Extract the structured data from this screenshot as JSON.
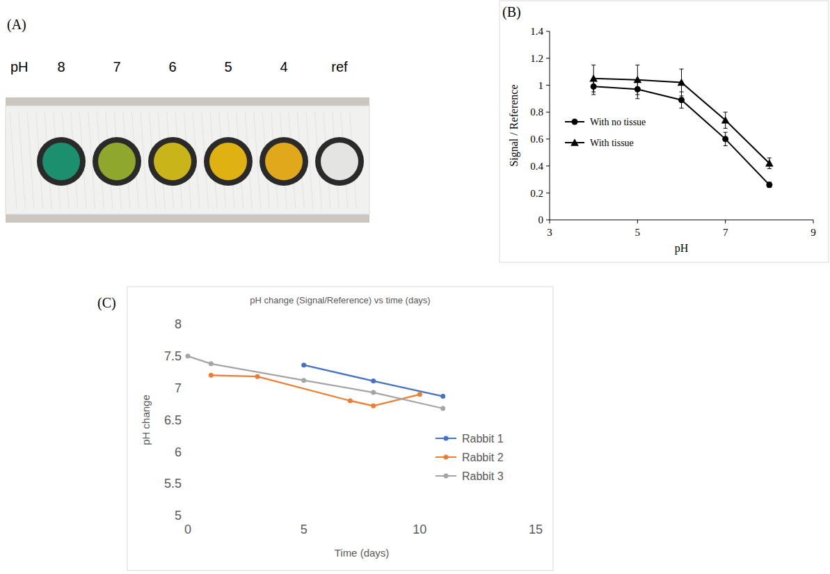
{
  "chart_data": [
    {
      "type": "swatch",
      "panel_label": "(A)",
      "x_label": "pH",
      "categories": [
        "8",
        "7",
        "6",
        "5",
        "4",
        "ref"
      ],
      "colors": [
        "#1b8f6e",
        "#8ea72c",
        "#c9b41a",
        "#dfb112",
        "#e0a81a",
        "#e4e4e2"
      ]
    },
    {
      "type": "line",
      "panel_label": "(B)",
      "x_label": "pH",
      "y_label": "Signal / Reference",
      "x": [
        4,
        5,
        6,
        7,
        8
      ],
      "xlim": [
        3,
        9
      ],
      "xticks": [
        3,
        5,
        7,
        9
      ],
      "ylim": [
        0,
        1.4
      ],
      "yticks": [
        0,
        0.2,
        0.4,
        0.6,
        0.8,
        1,
        1.2,
        1.4
      ],
      "grid": false,
      "legend": "left",
      "series": [
        {
          "name": "With no tissue",
          "color": "#000000",
          "marker": "circle",
          "values": [
            0.99,
            0.97,
            0.89,
            0.6,
            0.26
          ],
          "errors": [
            0.06,
            0.07,
            0.06,
            0.05,
            0.02
          ]
        },
        {
          "name": "With tissue",
          "color": "#000000",
          "marker": "triangle",
          "values": [
            1.05,
            1.04,
            1.02,
            0.74,
            0.42
          ],
          "errors": [
            0.1,
            0.11,
            0.1,
            0.06,
            0.04
          ]
        }
      ]
    },
    {
      "type": "line",
      "panel_label": "(C)",
      "title": "pH change (Signal/Reference) vs time (days)",
      "x_label": "Time (days)",
      "y_label": "pH change",
      "xlim": [
        0,
        15
      ],
      "xticks": [
        0,
        5,
        10,
        15
      ],
      "ylim": [
        5,
        8
      ],
      "yticks": [
        5,
        5.5,
        6,
        6.5,
        7,
        7.5,
        8
      ],
      "grid": false,
      "legend": "right",
      "series": [
        {
          "name": "Rabbit 1",
          "color": "#4472c4",
          "marker": "circle",
          "x": [
            5,
            8,
            11
          ],
          "values": [
            7.36,
            7.11,
            6.87
          ]
        },
        {
          "name": "Rabbit 2",
          "color": "#ed7d31",
          "marker": "circle",
          "x": [
            1,
            3,
            7,
            8,
            10
          ],
          "values": [
            7.2,
            7.18,
            6.8,
            6.72,
            6.9
          ]
        },
        {
          "name": "Rabbit 3",
          "color": "#a5a5a5",
          "marker": "circle",
          "x": [
            0,
            1,
            5,
            8,
            11
          ],
          "values": [
            7.5,
            7.38,
            7.12,
            6.93,
            6.68
          ]
        }
      ]
    }
  ]
}
